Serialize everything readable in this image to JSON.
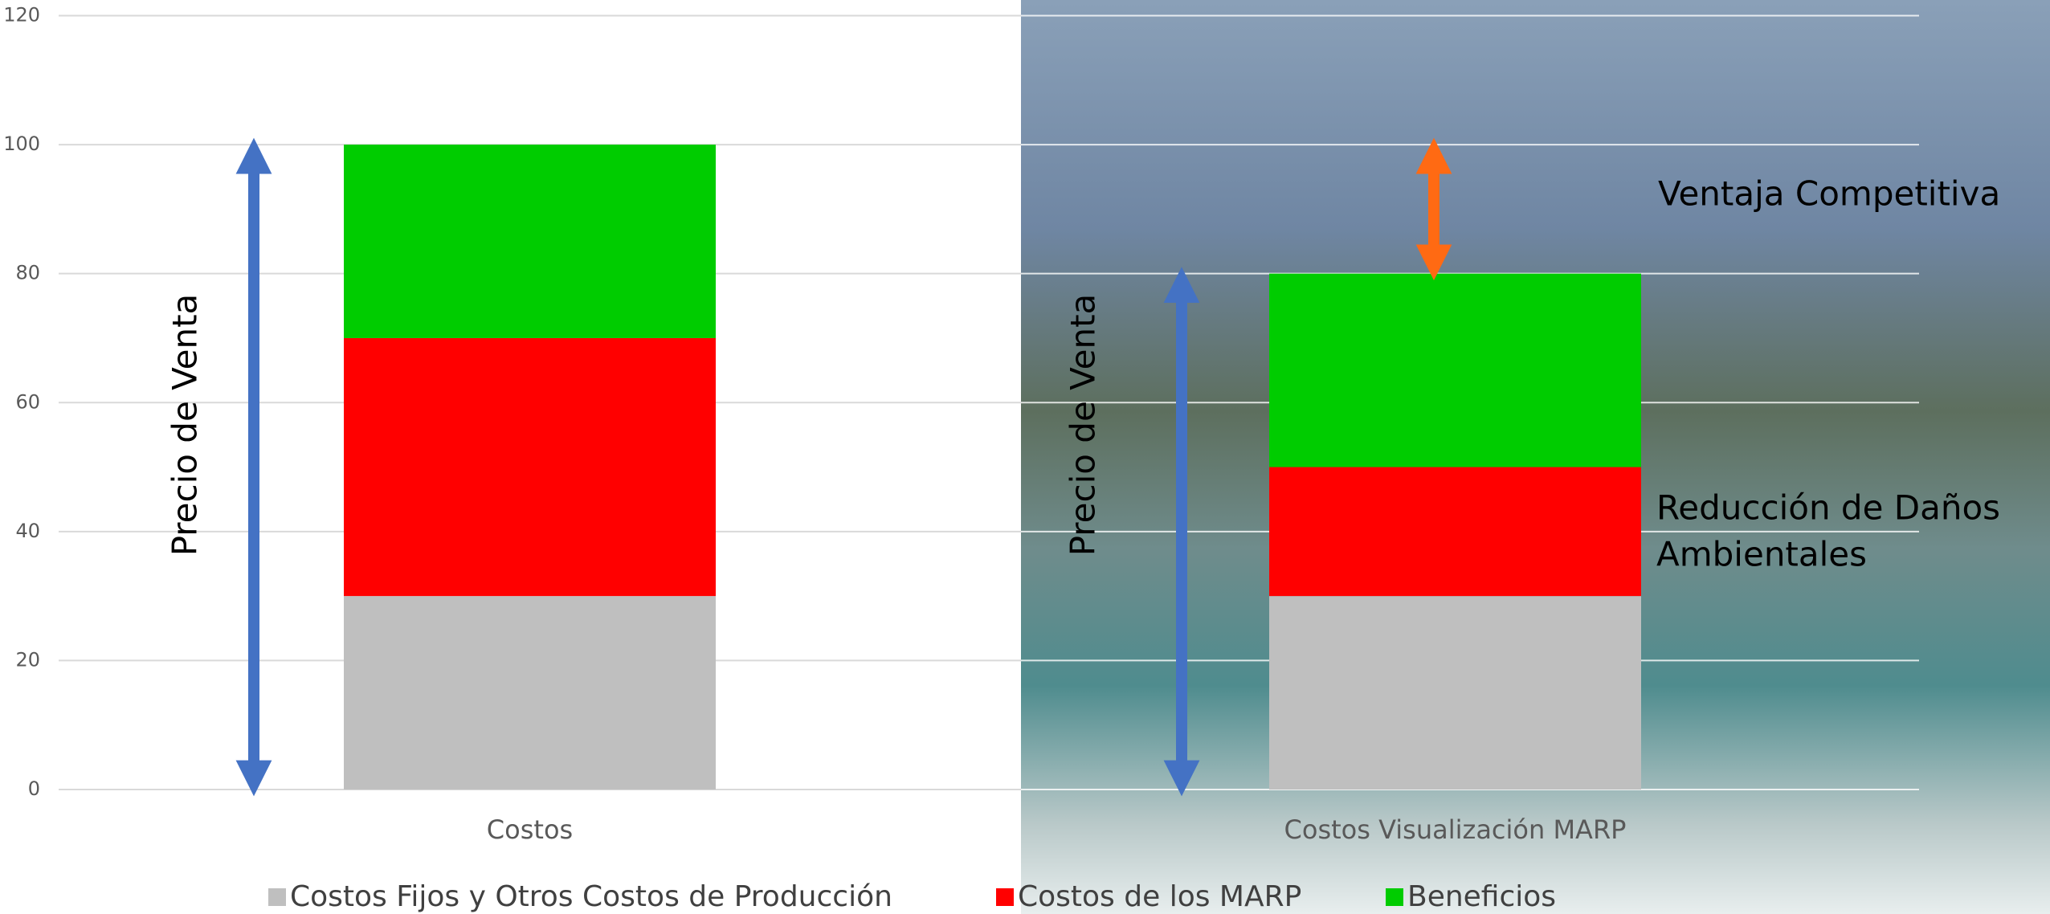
{
  "chart_data": {
    "type": "stacked-bar",
    "categories": [
      "Costos",
      "Costos Visualización MARP"
    ],
    "series": [
      {
        "name": "Costos Fijos y Otros Costos de Producción",
        "color": "#bfbfbf",
        "values": [
          30,
          30
        ]
      },
      {
        "name": "Costos de los MARP",
        "color": "#ff0000",
        "values": [
          40,
          20
        ]
      },
      {
        "name": "Beneficios",
        "color": "#00cc00",
        "values": [
          30,
          30
        ]
      }
    ],
    "ylim": [
      0,
      120
    ],
    "yticks": [
      0,
      20,
      40,
      60,
      80,
      100,
      120
    ],
    "grid": true,
    "annotations": [
      "Precio de Venta",
      "Precio de Venta",
      "Ventaja Competitiva",
      "Reducción de Daños",
      "Ambientales"
    ]
  }
}
